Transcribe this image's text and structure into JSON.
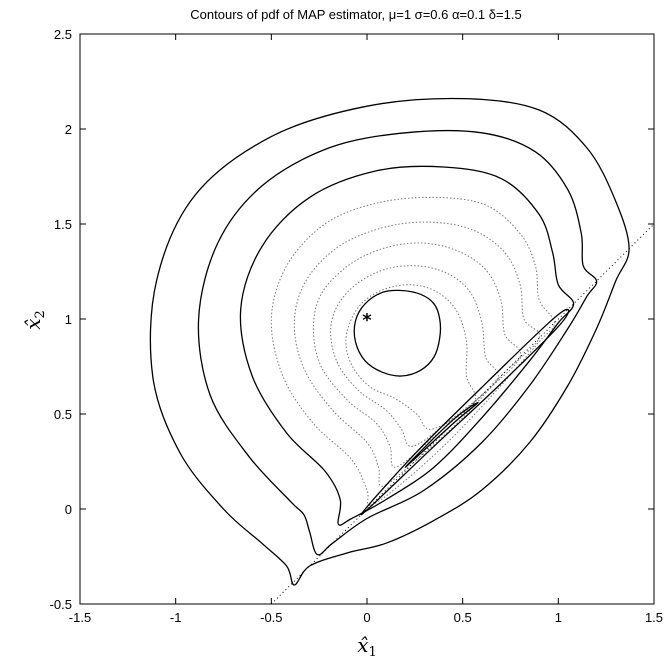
{
  "chart_data": {
    "type": "contour",
    "title": "Contours of pdf of MAP estimator, μ=1 σ=0.6 α=0.1 δ=1.5",
    "xlabel": "x̂",
    "xlabel_sub": "1",
    "ylabel": "x̂",
    "ylabel_sub": "2",
    "xlim": [
      -1.5,
      1.5
    ],
    "ylim": [
      -0.5,
      2.5
    ],
    "xticks": [
      -1.5,
      -1,
      -0.5,
      0,
      0.5,
      1,
      1.5
    ],
    "xtick_labels": [
      "-1.5",
      "-1",
      "-0.5",
      "0",
      "0.5",
      "1",
      "1.5"
    ],
    "yticks": [
      -0.5,
      0,
      0.5,
      1,
      1.5,
      2,
      2.5
    ],
    "ytick_labels": [
      "-0.5",
      "0",
      "0.5",
      "1",
      "1.5",
      "2",
      "2.5"
    ],
    "grid": false,
    "marker": {
      "x": 0,
      "y": 1,
      "symbol": "*"
    },
    "reference_line": {
      "x": [
        -0.5,
        1.5
      ],
      "y": [
        -0.5,
        1.5
      ],
      "style": "dotted"
    },
    "contours": [
      {
        "style": "solid",
        "points": [
          [
            1.37,
            1.37
          ],
          [
            1.3,
            1.62
          ],
          [
            1.15,
            1.9
          ],
          [
            0.9,
            2.1
          ],
          [
            0.5,
            2.16
          ],
          [
            0.0,
            2.12
          ],
          [
            -0.5,
            1.96
          ],
          [
            -0.9,
            1.65
          ],
          [
            -1.1,
            1.2
          ],
          [
            -1.12,
            0.7
          ],
          [
            -0.98,
            0.3
          ],
          [
            -0.75,
            0.0
          ],
          [
            -0.55,
            -0.18
          ],
          [
            -0.42,
            -0.3
          ],
          [
            -0.38,
            -0.4
          ],
          [
            -0.3,
            -0.3
          ],
          [
            -0.1,
            -0.23
          ],
          [
            0.1,
            -0.18
          ],
          [
            0.35,
            -0.06
          ],
          [
            0.6,
            0.1
          ],
          [
            0.85,
            0.35
          ],
          [
            1.05,
            0.65
          ],
          [
            1.2,
            0.95
          ],
          [
            1.3,
            1.2
          ],
          [
            1.37,
            1.37
          ]
        ]
      },
      {
        "style": "solid",
        "points": [
          [
            1.2,
            1.2
          ],
          [
            1.13,
            1.28
          ],
          [
            1.12,
            1.45
          ],
          [
            1.05,
            1.68
          ],
          [
            0.88,
            1.88
          ],
          [
            0.6,
            1.98
          ],
          [
            0.2,
            1.98
          ],
          [
            -0.2,
            1.9
          ],
          [
            -0.55,
            1.7
          ],
          [
            -0.78,
            1.4
          ],
          [
            -0.88,
            1.0
          ],
          [
            -0.82,
            0.6
          ],
          [
            -0.62,
            0.28
          ],
          [
            -0.4,
            0.04
          ],
          [
            -0.33,
            -0.03
          ],
          [
            -0.3,
            -0.12
          ],
          [
            -0.26,
            -0.24
          ],
          [
            -0.18,
            -0.18
          ],
          [
            0.0,
            -0.05
          ],
          [
            0.3,
            0.1
          ],
          [
            0.6,
            0.35
          ],
          [
            0.85,
            0.65
          ],
          [
            1.05,
            0.95
          ],
          [
            1.15,
            1.12
          ],
          [
            1.2,
            1.2
          ]
        ]
      },
      {
        "style": "solid",
        "points": [
          [
            1.08,
            1.08
          ],
          [
            1.0,
            1.18
          ],
          [
            0.97,
            1.35
          ],
          [
            0.9,
            1.55
          ],
          [
            0.7,
            1.74
          ],
          [
            0.4,
            1.8
          ],
          [
            0.05,
            1.78
          ],
          [
            -0.3,
            1.64
          ],
          [
            -0.55,
            1.38
          ],
          [
            -0.66,
            1.05
          ],
          [
            -0.6,
            0.7
          ],
          [
            -0.42,
            0.4
          ],
          [
            -0.22,
            0.2
          ],
          [
            -0.14,
            0.05
          ],
          [
            -0.15,
            -0.08
          ],
          [
            -0.08,
            -0.05
          ],
          [
            0.1,
            0.05
          ],
          [
            0.35,
            0.22
          ],
          [
            0.6,
            0.48
          ],
          [
            0.85,
            0.78
          ],
          [
            1.0,
            0.98
          ],
          [
            1.08,
            1.08
          ]
        ]
      },
      {
        "style": "dotted",
        "points": [
          [
            0.98,
            0.98
          ],
          [
            0.9,
            1.1
          ],
          [
            0.88,
            1.28
          ],
          [
            0.8,
            1.45
          ],
          [
            0.62,
            1.6
          ],
          [
            0.35,
            1.64
          ],
          [
            0.05,
            1.61
          ],
          [
            -0.22,
            1.5
          ],
          [
            -0.42,
            1.28
          ],
          [
            -0.5,
            1.0
          ],
          [
            -0.44,
            0.7
          ],
          [
            -0.28,
            0.45
          ],
          [
            -0.08,
            0.26
          ],
          [
            0.0,
            0.1
          ],
          [
            0.02,
            0.02
          ],
          [
            0.2,
            0.15
          ],
          [
            0.45,
            0.38
          ],
          [
            0.7,
            0.65
          ],
          [
            0.9,
            0.88
          ],
          [
            0.98,
            0.98
          ]
        ]
      },
      {
        "style": "dotted",
        "points": [
          [
            0.9,
            0.9
          ],
          [
            0.82,
            1.0
          ],
          [
            0.8,
            1.18
          ],
          [
            0.72,
            1.35
          ],
          [
            0.55,
            1.47
          ],
          [
            0.32,
            1.51
          ],
          [
            0.08,
            1.48
          ],
          [
            -0.15,
            1.38
          ],
          [
            -0.32,
            1.2
          ],
          [
            -0.38,
            0.98
          ],
          [
            -0.33,
            0.74
          ],
          [
            -0.18,
            0.52
          ],
          [
            0.0,
            0.35
          ],
          [
            0.06,
            0.22
          ],
          [
            0.08,
            0.12
          ],
          [
            0.25,
            0.25
          ],
          [
            0.5,
            0.48
          ],
          [
            0.72,
            0.72
          ],
          [
            0.9,
            0.9
          ]
        ]
      },
      {
        "style": "dotted",
        "points": [
          [
            0.8,
            0.8
          ],
          [
            0.72,
            0.92
          ],
          [
            0.7,
            1.1
          ],
          [
            0.62,
            1.26
          ],
          [
            0.47,
            1.36
          ],
          [
            0.28,
            1.4
          ],
          [
            0.08,
            1.37
          ],
          [
            -0.1,
            1.28
          ],
          [
            -0.24,
            1.13
          ],
          [
            -0.28,
            0.95
          ],
          [
            -0.24,
            0.75
          ],
          [
            -0.1,
            0.57
          ],
          [
            0.05,
            0.45
          ],
          [
            0.12,
            0.33
          ],
          [
            0.15,
            0.22
          ],
          [
            0.35,
            0.38
          ],
          [
            0.6,
            0.6
          ],
          [
            0.8,
            0.8
          ]
        ]
      },
      {
        "style": "dotted",
        "points": [
          [
            0.68,
            0.68
          ],
          [
            0.62,
            0.8
          ],
          [
            0.6,
            0.98
          ],
          [
            0.54,
            1.14
          ],
          [
            0.42,
            1.24
          ],
          [
            0.26,
            1.28
          ],
          [
            0.09,
            1.26
          ],
          [
            -0.06,
            1.18
          ],
          [
            -0.16,
            1.06
          ],
          [
            -0.19,
            0.92
          ],
          [
            -0.15,
            0.76
          ],
          [
            -0.04,
            0.62
          ],
          [
            0.1,
            0.52
          ],
          [
            0.18,
            0.42
          ],
          [
            0.24,
            0.33
          ],
          [
            0.45,
            0.48
          ],
          [
            0.68,
            0.68
          ]
        ]
      },
      {
        "style": "dotted",
        "points": [
          [
            0.56,
            0.56
          ],
          [
            0.52,
            0.7
          ],
          [
            0.52,
            0.88
          ],
          [
            0.47,
            1.04
          ],
          [
            0.37,
            1.14
          ],
          [
            0.24,
            1.18
          ],
          [
            0.1,
            1.16
          ],
          [
            -0.02,
            1.09
          ],
          [
            -0.09,
            0.98
          ],
          [
            -0.11,
            0.86
          ],
          [
            -0.07,
            0.74
          ],
          [
            0.02,
            0.64
          ],
          [
            0.15,
            0.58
          ],
          [
            0.26,
            0.5
          ],
          [
            0.34,
            0.42
          ],
          [
            0.56,
            0.56
          ]
        ]
      },
      {
        "style": "solid",
        "points": [
          [
            0.38,
            1.0
          ],
          [
            0.35,
            1.08
          ],
          [
            0.28,
            1.13
          ],
          [
            0.18,
            1.15
          ],
          [
            0.08,
            1.14
          ],
          [
            -0.01,
            1.08
          ],
          [
            -0.06,
            0.99
          ],
          [
            -0.06,
            0.88
          ],
          [
            -0.01,
            0.78
          ],
          [
            0.08,
            0.72
          ],
          [
            0.18,
            0.7
          ],
          [
            0.28,
            0.73
          ],
          [
            0.35,
            0.8
          ],
          [
            0.38,
            0.9
          ],
          [
            0.38,
            1.0
          ]
        ]
      },
      {
        "style": "solid",
        "points": [
          [
            -0.03,
            -0.03
          ],
          [
            0.35,
            0.33
          ],
          [
            0.7,
            0.66
          ],
          [
            1.0,
            0.96
          ],
          [
            1.05,
            1.05
          ],
          [
            0.95,
            0.98
          ],
          [
            0.6,
            0.64
          ],
          [
            0.25,
            0.29
          ],
          [
            -0.03,
            -0.03
          ]
        ]
      },
      {
        "style": "solid",
        "points": [
          [
            0.2,
            0.22
          ],
          [
            0.45,
            0.45
          ],
          [
            0.58,
            0.56
          ],
          [
            0.45,
            0.47
          ],
          [
            0.2,
            0.22
          ]
        ]
      }
    ]
  }
}
